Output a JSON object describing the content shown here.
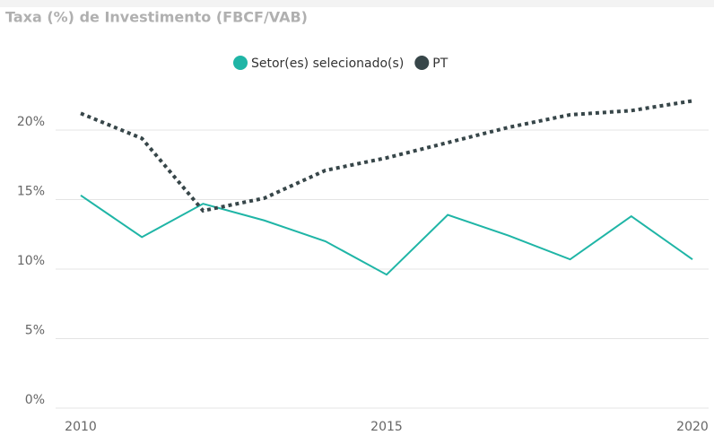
{
  "chart_data": {
    "type": "line",
    "title": "Taxa (%) de Investimento (FBCF/VAB)",
    "x": [
      2010,
      2011,
      2012,
      2013,
      2014,
      2015,
      2016,
      2017,
      2018,
      2019,
      2020
    ],
    "series": [
      {
        "name": "Setor(es) selecionado(s)",
        "color": "#1fb5a6",
        "line_style": "solid",
        "values": [
          15.3,
          12.3,
          14.7,
          13.5,
          12.0,
          9.6,
          13.9,
          12.4,
          10.7,
          13.8,
          10.7
        ]
      },
      {
        "name": "PT",
        "color": "#374649",
        "line_style": "dotted",
        "values": [
          21.2,
          19.4,
          14.2,
          15.1,
          17.1,
          18.0,
          19.1,
          20.2,
          21.1,
          21.4,
          22.1
        ]
      }
    ],
    "xlim": [
      2010,
      2020
    ],
    "xticks": [
      2010,
      2015,
      2020
    ],
    "ylim": [
      0,
      22.5
    ],
    "yticks": [
      {
        "value": 0,
        "label": "0%"
      },
      {
        "value": 5,
        "label": "5%"
      },
      {
        "value": 10,
        "label": "10%"
      },
      {
        "value": 15,
        "label": "15%"
      },
      {
        "value": 20,
        "label": "20%"
      }
    ],
    "grid": true,
    "legend": "top"
  }
}
